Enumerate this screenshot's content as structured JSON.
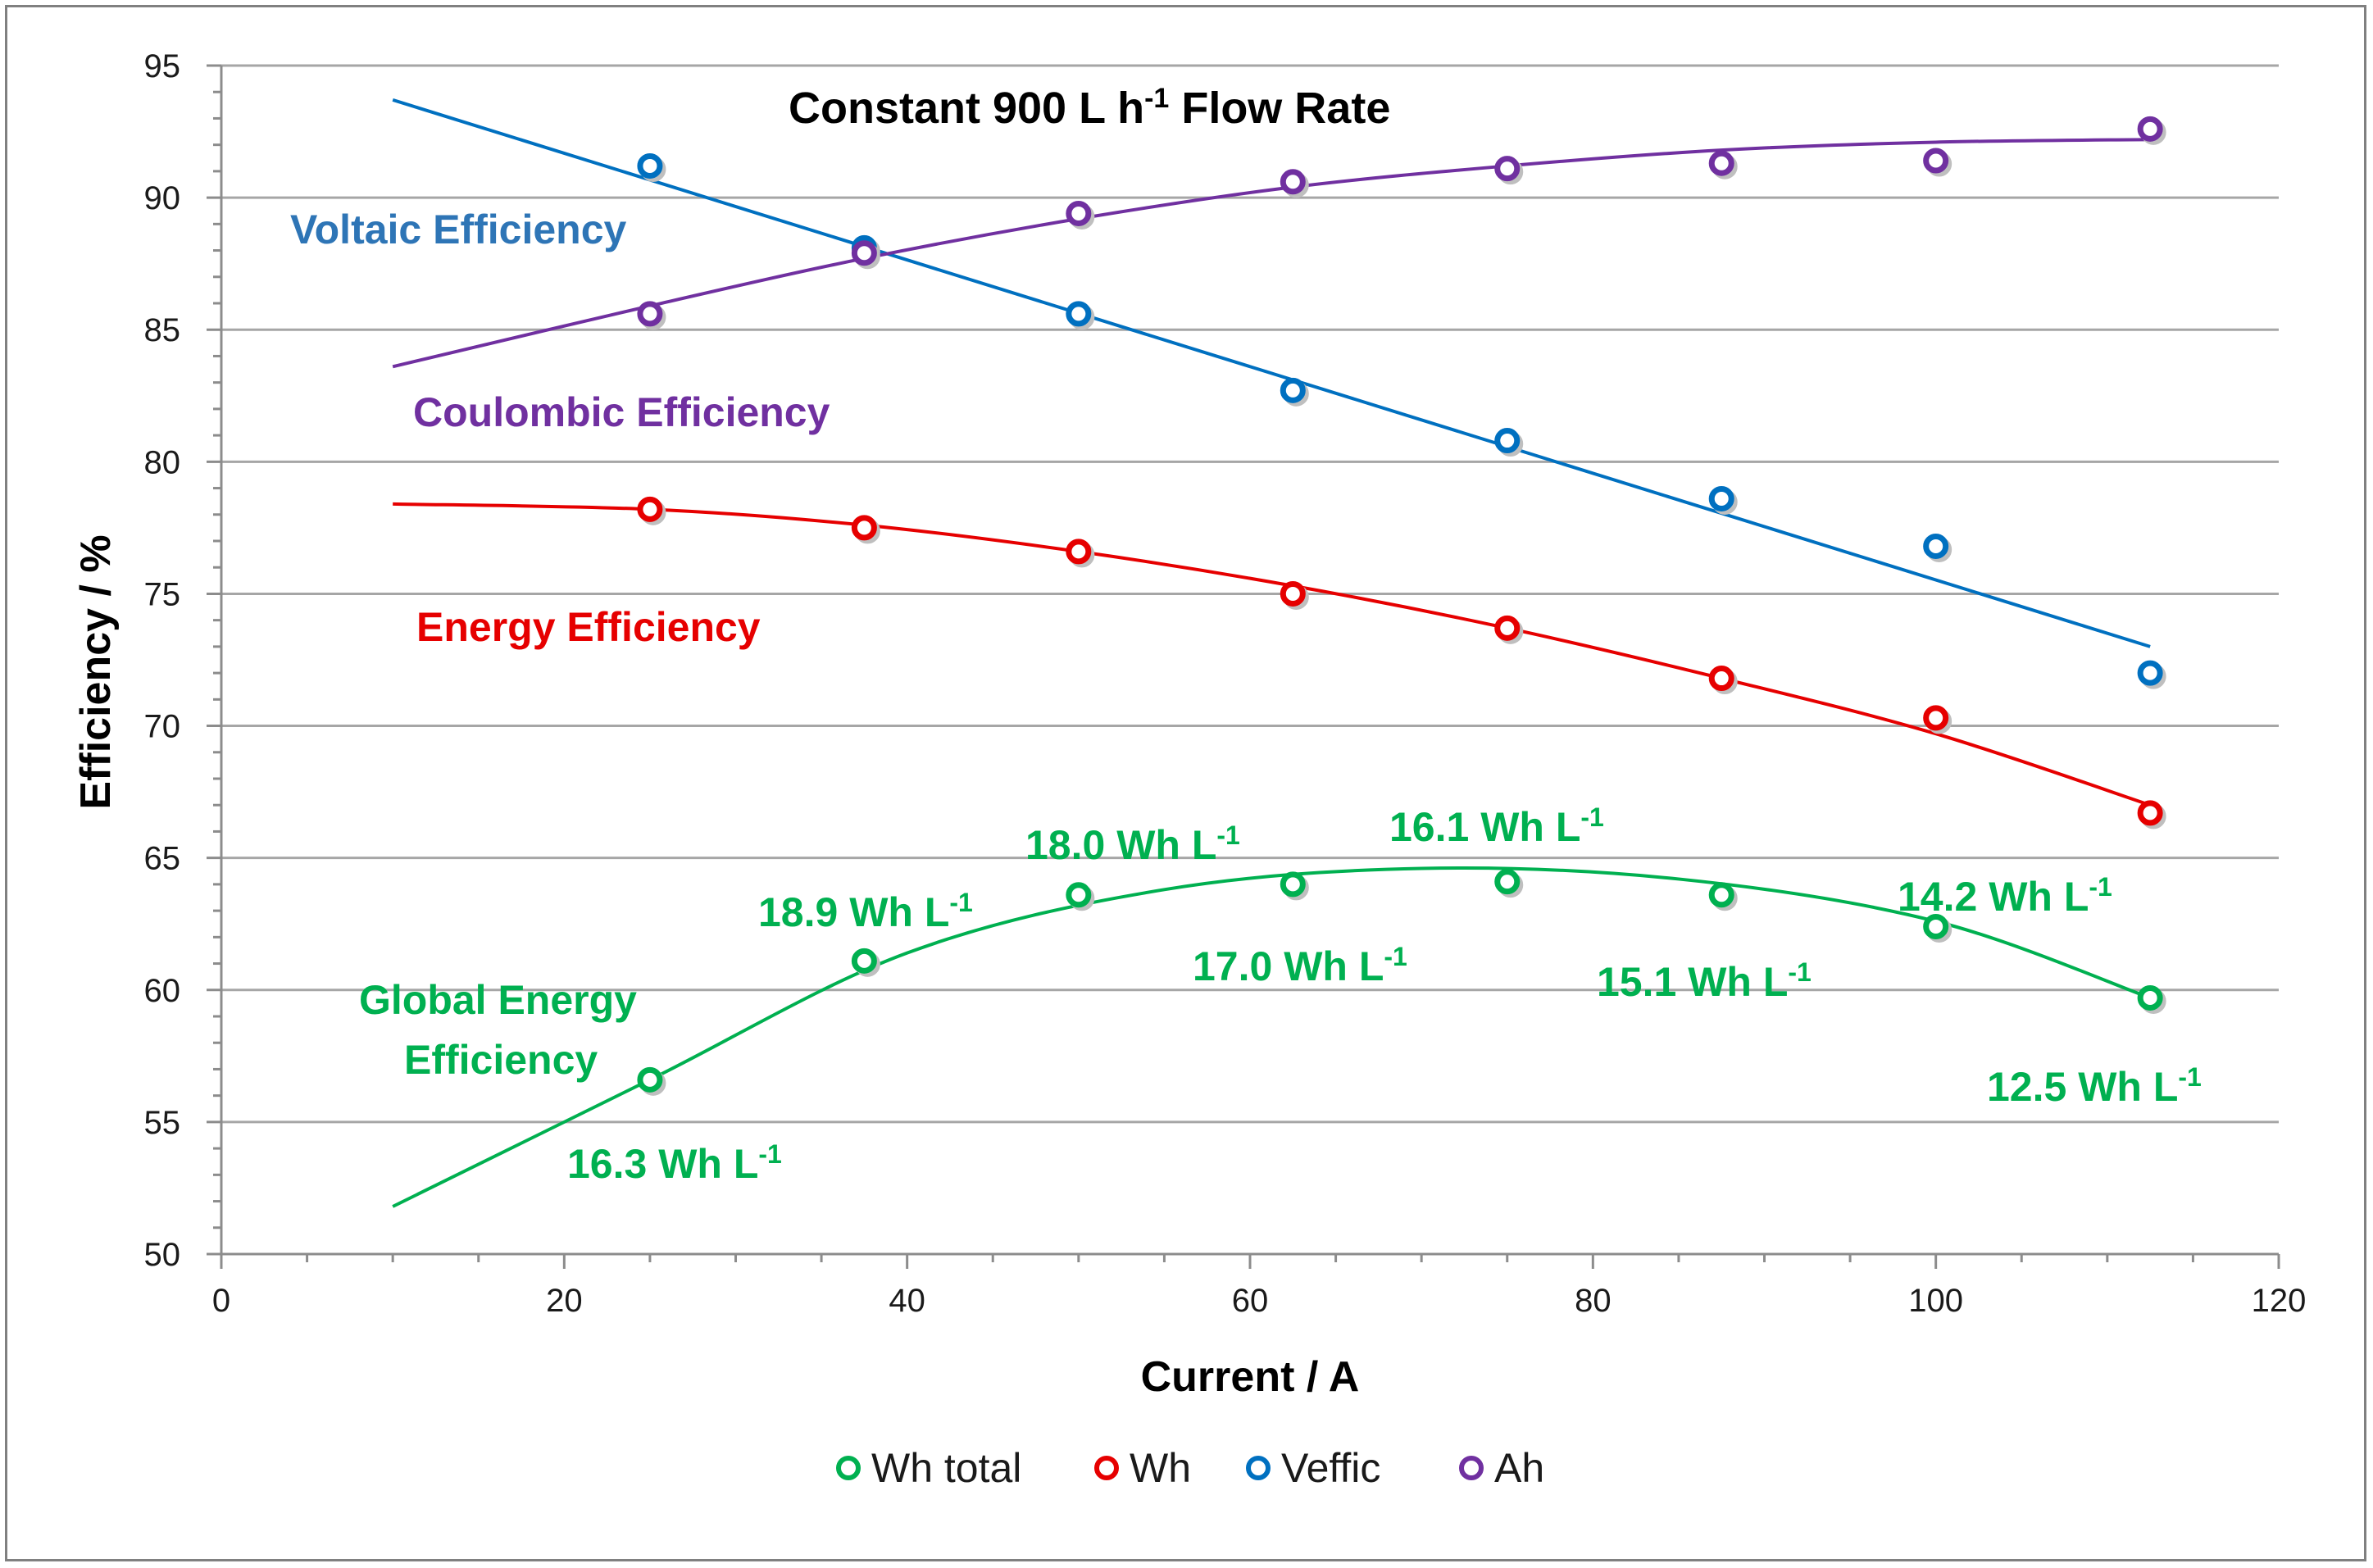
{
  "chart_data": {
    "type": "scatter",
    "title": {
      "main": "Constant 900 L h",
      "sup": "-1",
      "tail": " Flow Rate"
    },
    "xlabel": "Current / A",
    "ylabel": "Efficiency / %",
    "xlim": [
      0,
      120
    ],
    "ylim": [
      50,
      95
    ],
    "x_ticks": [
      0,
      20,
      40,
      60,
      80,
      100,
      120
    ],
    "y_ticks": [
      50,
      55,
      60,
      65,
      70,
      75,
      80,
      85,
      90,
      95
    ],
    "grid": "horizontal",
    "legend_position": "bottom",
    "x": [
      25,
      37.5,
      50,
      62.5,
      75,
      87.5,
      100,
      112.5
    ],
    "series": [
      {
        "name": "Wh total",
        "color": "#00b050",
        "values": [
          56.6,
          61.1,
          63.6,
          64.0,
          64.1,
          63.6,
          62.4,
          59.7
        ],
        "fit": {
          "x_range": [
            10,
            112.5
          ],
          "poly": [
            0.0,
            0.0,
            0.0
          ],
          "points": [
            [
              10,
              51.8
            ],
            [
              25,
              56.6
            ],
            [
              40,
              61.4
            ],
            [
              55,
              63.8
            ],
            [
              70,
              64.6
            ],
            [
              85,
              64.2
            ],
            [
              100,
              62.6
            ],
            [
              112.5,
              59.7
            ]
          ]
        }
      },
      {
        "name": "Wh",
        "color": "#e60000",
        "values": [
          78.2,
          77.5,
          76.6,
          75.0,
          73.7,
          71.8,
          70.3,
          66.7
        ],
        "fit": {
          "points": [
            [
              10,
              78.4
            ],
            [
              25,
              78.2
            ],
            [
              37.5,
              77.6
            ],
            [
              50,
              76.6
            ],
            [
              62.5,
              75.3
            ],
            [
              75,
              73.7
            ],
            [
              87.5,
              71.8
            ],
            [
              100,
              69.7
            ],
            [
              112.5,
              67.0
            ]
          ]
        }
      },
      {
        "name": "Veffic",
        "color": "#0070c0",
        "values": [
          91.2,
          88.1,
          85.6,
          82.7,
          80.8,
          78.6,
          76.8,
          72.0
        ],
        "fit": {
          "points": [
            [
              10,
              93.7
            ],
            [
              112.5,
              73.0
            ]
          ]
        }
      },
      {
        "name": "Ah",
        "color": "#7030a0",
        "values": [
          85.6,
          87.9,
          89.4,
          90.6,
          91.1,
          91.3,
          91.4,
          92.6
        ],
        "fit": {
          "points": [
            [
              10,
              83.6
            ],
            [
              25,
              85.9
            ],
            [
              37.5,
              87.7
            ],
            [
              50,
              89.2
            ],
            [
              62.5,
              90.4
            ],
            [
              75,
              91.2
            ],
            [
              87.5,
              91.8
            ],
            [
              100,
              92.1
            ],
            [
              112.5,
              92.2
            ]
          ]
        }
      }
    ],
    "series_labels": [
      {
        "id": "voltaic",
        "text": "Voltaic Efficiency",
        "color": "#2e75b6"
      },
      {
        "id": "coulombic",
        "text": "Coulombic Efficiency",
        "color": "#7030a0"
      },
      {
        "id": "energy",
        "text": "Energy Efficiency",
        "color": "#e60000"
      },
      {
        "id": "global1",
        "text": "Global Energy",
        "color": "#00b050"
      },
      {
        "id": "global2",
        "text": "Efficiency",
        "color": "#00b050"
      }
    ],
    "energy_density_labels": [
      {
        "text": "16.3 Wh L",
        "sup": "-1"
      },
      {
        "text": "18.9 Wh L",
        "sup": "-1"
      },
      {
        "text": "18.0 Wh L",
        "sup": "-1"
      },
      {
        "text": "17.0 Wh L",
        "sup": "-1"
      },
      {
        "text": "16.1 Wh L",
        "sup": "-1"
      },
      {
        "text": "15.1 Wh L",
        "sup": "-1"
      },
      {
        "text": "14.2 Wh L",
        "sup": "-1"
      },
      {
        "text": "12.5 Wh L",
        "sup": "-1"
      }
    ]
  }
}
